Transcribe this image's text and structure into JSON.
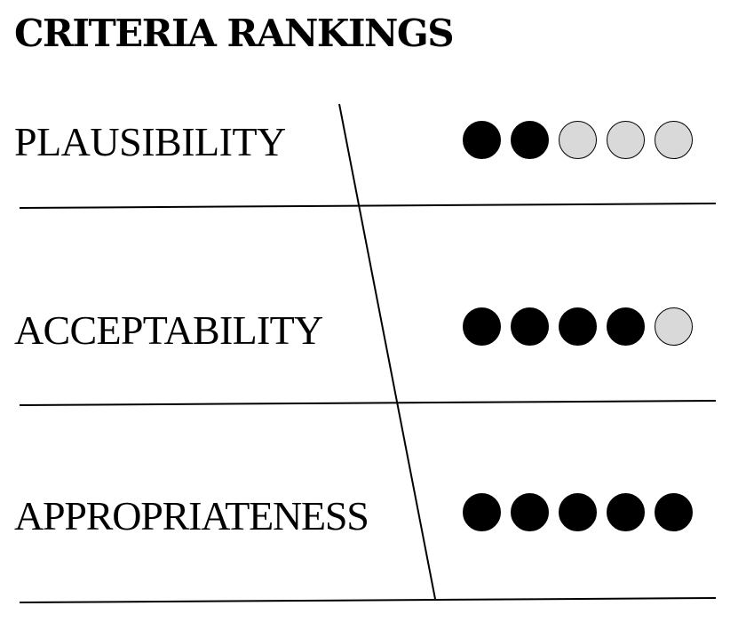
{
  "title": "CRITERIA RANKINGS",
  "max_rating": 5,
  "colors": {
    "filled_dot": "#000000",
    "empty_dot": "#d9d9d9",
    "text": "#000000",
    "background": "#ffffff"
  },
  "criteria": [
    {
      "label": "PLAUSIBILITY",
      "rating": 2
    },
    {
      "label": "ACCEPTABILITY",
      "rating": 4
    },
    {
      "label": "APPROPRIATENESS",
      "rating": 5
    }
  ]
}
